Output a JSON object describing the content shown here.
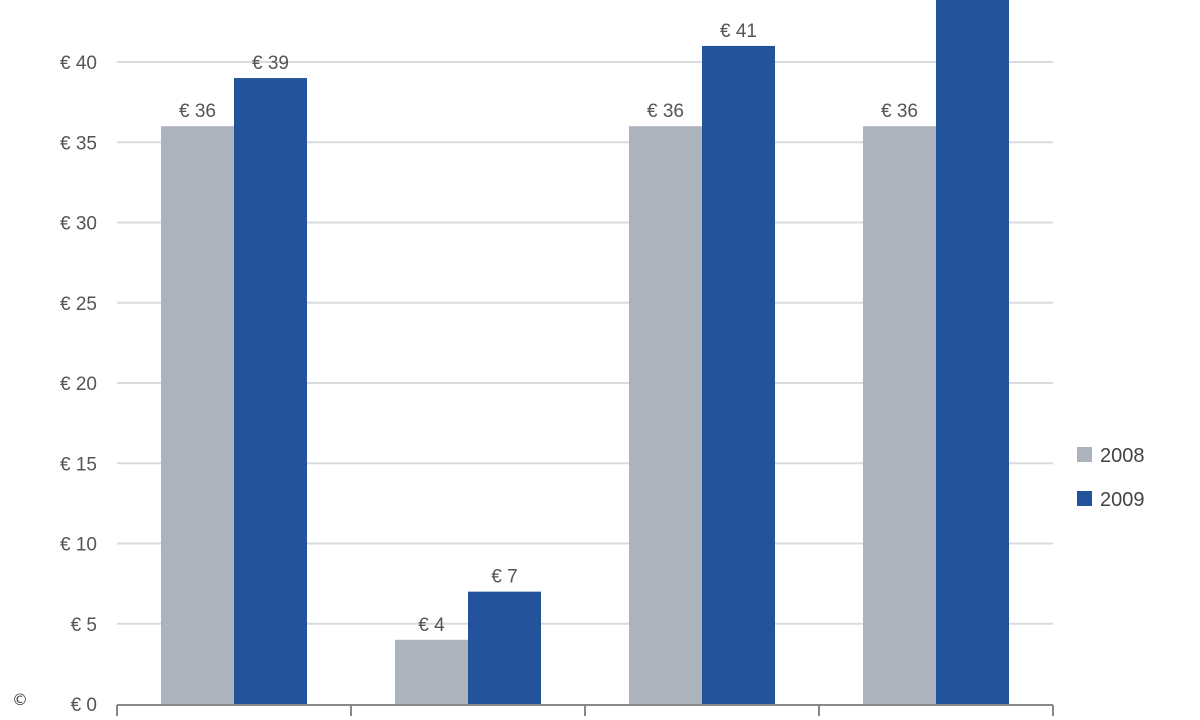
{
  "chart_data": {
    "type": "bar",
    "categories": [
      "",
      "",
      "",
      ""
    ],
    "series": [
      {
        "name": "2008",
        "values": [
          36,
          4,
          36,
          36
        ],
        "labels": [
          "€ 36",
          "€ 4",
          "€ 36",
          "€ 36"
        ],
        "color": "#adb3bd"
      },
      {
        "name": "2009",
        "values": [
          39,
          7,
          41,
          44
        ],
        "labels": [
          "€ 39",
          "€ 7",
          "€ 41",
          ""
        ],
        "color": "#23539a"
      }
    ],
    "yticks": [
      0,
      5,
      10,
      15,
      20,
      25,
      30,
      35,
      40
    ],
    "ytick_labels": [
      "€ 0",
      "€ 5",
      "€ 10",
      "€ 15",
      "€ 20",
      "€ 25",
      "€ 30",
      "€ 35",
      "€ 40"
    ],
    "ylim": [
      0,
      44
    ],
    "grid": true,
    "legend_position": "right",
    "gridline_color": "#d9dcdf",
    "axis_color": "#888888"
  },
  "footer": {
    "copyright_symbol": "©"
  }
}
